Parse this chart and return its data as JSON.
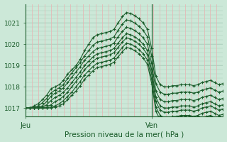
{
  "bg_color": "#cce8d8",
  "grid_color_h": "#aaccbb",
  "grid_color_v": "#e8a0a0",
  "line_color": "#1a5c2a",
  "title": "Pression niveau de la mer( hPa )",
  "xlabel_jeu": "Jeu",
  "xlabel_ven": "Ven",
  "ylabel_ticks": [
    1017,
    1018,
    1019,
    1020,
    1021
  ],
  "ylim": [
    1016.6,
    1021.9
  ],
  "xlim": [
    0,
    47
  ],
  "jeu_x": 0,
  "ven_x": 30,
  "series": [
    {
      "x": [
        0,
        1,
        2,
        3,
        4,
        5,
        6,
        7,
        8,
        9,
        10,
        11,
        12,
        13,
        14,
        15,
        16,
        17,
        18,
        19,
        20,
        21,
        22,
        23,
        24,
        25,
        26,
        27,
        28,
        29,
        30,
        31,
        32,
        33,
        34,
        35,
        36,
        37,
        38,
        39,
        40,
        41,
        42,
        43,
        44,
        45,
        46,
        47
      ],
      "y": [
        1017.0,
        1017.0,
        1017.1,
        1017.2,
        1017.4,
        1017.6,
        1017.9,
        1018.0,
        1018.1,
        1018.3,
        1018.6,
        1018.8,
        1019.0,
        1019.3,
        1019.7,
        1020.0,
        1020.3,
        1020.45,
        1020.5,
        1020.55,
        1020.6,
        1020.7,
        1021.0,
        1021.3,
        1021.5,
        1021.45,
        1021.35,
        1021.2,
        1021.0,
        1020.7,
        1019.8,
        1018.5,
        1018.1,
        1018.0,
        1018.0,
        1018.05,
        1018.05,
        1018.1,
        1018.1,
        1018.1,
        1018.05,
        1018.1,
        1018.2,
        1018.25,
        1018.3,
        1018.2,
        1018.1,
        1018.15
      ]
    },
    {
      "x": [
        0,
        1,
        2,
        3,
        4,
        5,
        6,
        7,
        8,
        9,
        10,
        11,
        12,
        13,
        14,
        15,
        16,
        17,
        18,
        19,
        20,
        21,
        22,
        23,
        24,
        25,
        26,
        27,
        28,
        29,
        30,
        31,
        32,
        33,
        34,
        35,
        36,
        37,
        38,
        39,
        40,
        41,
        42,
        43,
        44,
        45,
        46,
        47
      ],
      "y": [
        1017.0,
        1017.0,
        1017.05,
        1017.1,
        1017.25,
        1017.45,
        1017.7,
        1017.85,
        1017.95,
        1018.1,
        1018.4,
        1018.65,
        1018.9,
        1019.15,
        1019.45,
        1019.7,
        1019.95,
        1020.1,
        1020.15,
        1020.2,
        1020.25,
        1020.35,
        1020.65,
        1020.95,
        1021.15,
        1021.1,
        1021.0,
        1020.85,
        1020.65,
        1020.35,
        1019.45,
        1018.15,
        1017.75,
        1017.65,
        1017.65,
        1017.7,
        1017.7,
        1017.75,
        1017.75,
        1017.75,
        1017.7,
        1017.75,
        1017.85,
        1017.9,
        1017.95,
        1017.85,
        1017.75,
        1017.8
      ]
    },
    {
      "x": [
        0,
        1,
        2,
        3,
        4,
        5,
        6,
        7,
        8,
        9,
        10,
        11,
        12,
        13,
        14,
        15,
        16,
        17,
        18,
        19,
        20,
        21,
        22,
        23,
        24,
        25,
        26,
        27,
        28,
        29,
        30,
        31,
        32,
        33,
        34,
        35,
        36,
        37,
        38,
        39,
        40,
        41,
        42,
        43,
        44,
        45,
        46,
        47
      ],
      "y": [
        1017.0,
        1017.0,
        1017.0,
        1017.05,
        1017.1,
        1017.3,
        1017.55,
        1017.7,
        1017.8,
        1017.95,
        1018.2,
        1018.45,
        1018.7,
        1018.95,
        1019.25,
        1019.45,
        1019.65,
        1019.8,
        1019.85,
        1019.9,
        1019.95,
        1020.05,
        1020.35,
        1020.6,
        1020.8,
        1020.75,
        1020.65,
        1020.5,
        1020.3,
        1020.0,
        1019.1,
        1017.8,
        1017.4,
        1017.3,
        1017.3,
        1017.35,
        1017.35,
        1017.4,
        1017.4,
        1017.4,
        1017.35,
        1017.4,
        1017.5,
        1017.55,
        1017.6,
        1017.5,
        1017.4,
        1017.45
      ]
    },
    {
      "x": [
        0,
        1,
        2,
        3,
        4,
        5,
        6,
        7,
        8,
        9,
        10,
        11,
        12,
        13,
        14,
        15,
        16,
        17,
        18,
        19,
        20,
        21,
        22,
        23,
        24,
        25,
        26,
        27,
        28,
        29,
        30,
        31,
        32,
        33,
        34,
        35,
        36,
        37,
        38,
        39,
        40,
        41,
        42,
        43,
        44,
        45,
        46,
        47
      ],
      "y": [
        1017.0,
        1017.0,
        1017.0,
        1017.0,
        1017.05,
        1017.15,
        1017.35,
        1017.5,
        1017.6,
        1017.75,
        1017.95,
        1018.2,
        1018.45,
        1018.7,
        1019.0,
        1019.2,
        1019.4,
        1019.55,
        1019.6,
        1019.65,
        1019.7,
        1019.8,
        1020.05,
        1020.3,
        1020.5,
        1020.45,
        1020.35,
        1020.2,
        1020.0,
        1019.7,
        1018.8,
        1017.5,
        1017.1,
        1017.0,
        1017.0,
        1017.05,
        1017.05,
        1017.1,
        1017.1,
        1017.1,
        1017.05,
        1017.1,
        1017.2,
        1017.25,
        1017.3,
        1017.2,
        1017.1,
        1017.15
      ]
    },
    {
      "x": [
        0,
        1,
        2,
        3,
        4,
        5,
        6,
        7,
        8,
        9,
        10,
        11,
        12,
        13,
        14,
        15,
        16,
        17,
        18,
        19,
        20,
        21,
        22,
        23,
        24,
        25,
        26,
        27,
        28,
        29,
        30,
        31,
        32,
        33,
        34,
        35,
        36,
        37,
        38,
        39,
        40,
        41,
        42,
        43,
        44,
        45,
        46,
        47
      ],
      "y": [
        1017.0,
        1017.0,
        1017.0,
        1017.0,
        1017.0,
        1017.05,
        1017.15,
        1017.3,
        1017.4,
        1017.55,
        1017.75,
        1018.0,
        1018.25,
        1018.5,
        1018.8,
        1019.0,
        1019.2,
        1019.35,
        1019.4,
        1019.45,
        1019.5,
        1019.6,
        1019.85,
        1020.1,
        1020.3,
        1020.25,
        1020.15,
        1020.0,
        1019.8,
        1019.5,
        1018.6,
        1017.3,
        1016.9,
        1016.8,
        1016.8,
        1016.85,
        1016.85,
        1016.9,
        1016.9,
        1016.9,
        1016.85,
        1016.9,
        1017.0,
        1017.05,
        1017.1,
        1017.0,
        1016.9,
        1016.95
      ]
    },
    {
      "x": [
        0,
        1,
        2,
        3,
        4,
        5,
        6,
        7,
        8,
        9,
        10,
        11,
        12,
        13,
        14,
        15,
        16,
        17,
        18,
        19,
        20,
        21,
        22,
        23,
        24,
        25,
        26,
        27,
        28,
        29,
        30,
        31,
        32,
        33,
        34,
        35,
        36,
        37,
        38,
        39,
        40,
        41,
        42,
        43,
        44,
        45,
        46,
        47
      ],
      "y": [
        1017.0,
        1017.0,
        1017.0,
        1017.0,
        1017.0,
        1017.0,
        1017.05,
        1017.1,
        1017.2,
        1017.35,
        1017.55,
        1017.75,
        1018.0,
        1018.25,
        1018.55,
        1018.75,
        1018.95,
        1019.1,
        1019.15,
        1019.2,
        1019.25,
        1019.35,
        1019.6,
        1019.85,
        1020.05,
        1020.0,
        1019.9,
        1019.75,
        1019.55,
        1019.25,
        1018.35,
        1017.05,
        1016.65,
        1016.55,
        1016.55,
        1016.6,
        1016.6,
        1016.65,
        1016.65,
        1016.65,
        1016.6,
        1016.65,
        1016.75,
        1016.8,
        1016.85,
        1016.75,
        1016.65,
        1016.7
      ]
    },
    {
      "x": [
        0,
        1,
        2,
        3,
        4,
        5,
        6,
        7,
        8,
        9,
        10,
        11,
        12,
        13,
        14,
        15,
        16,
        17,
        18,
        19,
        20,
        21,
        22,
        23,
        24,
        25,
        26,
        27,
        28,
        29,
        30,
        31,
        32,
        33,
        34,
        35,
        36,
        37,
        38,
        39,
        40,
        41,
        42,
        43,
        44,
        45,
        46,
        47
      ],
      "y": [
        1017.0,
        1017.0,
        1017.0,
        1017.0,
        1017.0,
        1017.0,
        1017.0,
        1017.05,
        1017.1,
        1017.2,
        1017.4,
        1017.6,
        1017.8,
        1018.05,
        1018.35,
        1018.55,
        1018.75,
        1018.9,
        1018.95,
        1019.0,
        1019.05,
        1019.15,
        1019.4,
        1019.65,
        1019.85,
        1019.8,
        1019.7,
        1019.55,
        1019.35,
        1019.05,
        1018.15,
        1016.85,
        1016.45,
        1016.35,
        1016.35,
        1016.4,
        1016.4,
        1016.45,
        1016.45,
        1016.45,
        1016.4,
        1016.45,
        1016.55,
        1016.6,
        1016.65,
        1016.55,
        1016.45,
        1016.5
      ]
    }
  ],
  "n_vgrid": 32,
  "vgrid_color": "#e8b0b0",
  "vgrid_lw": 0.5,
  "hgrid_color": "#aaccbb",
  "hgrid_lw": 0.5
}
